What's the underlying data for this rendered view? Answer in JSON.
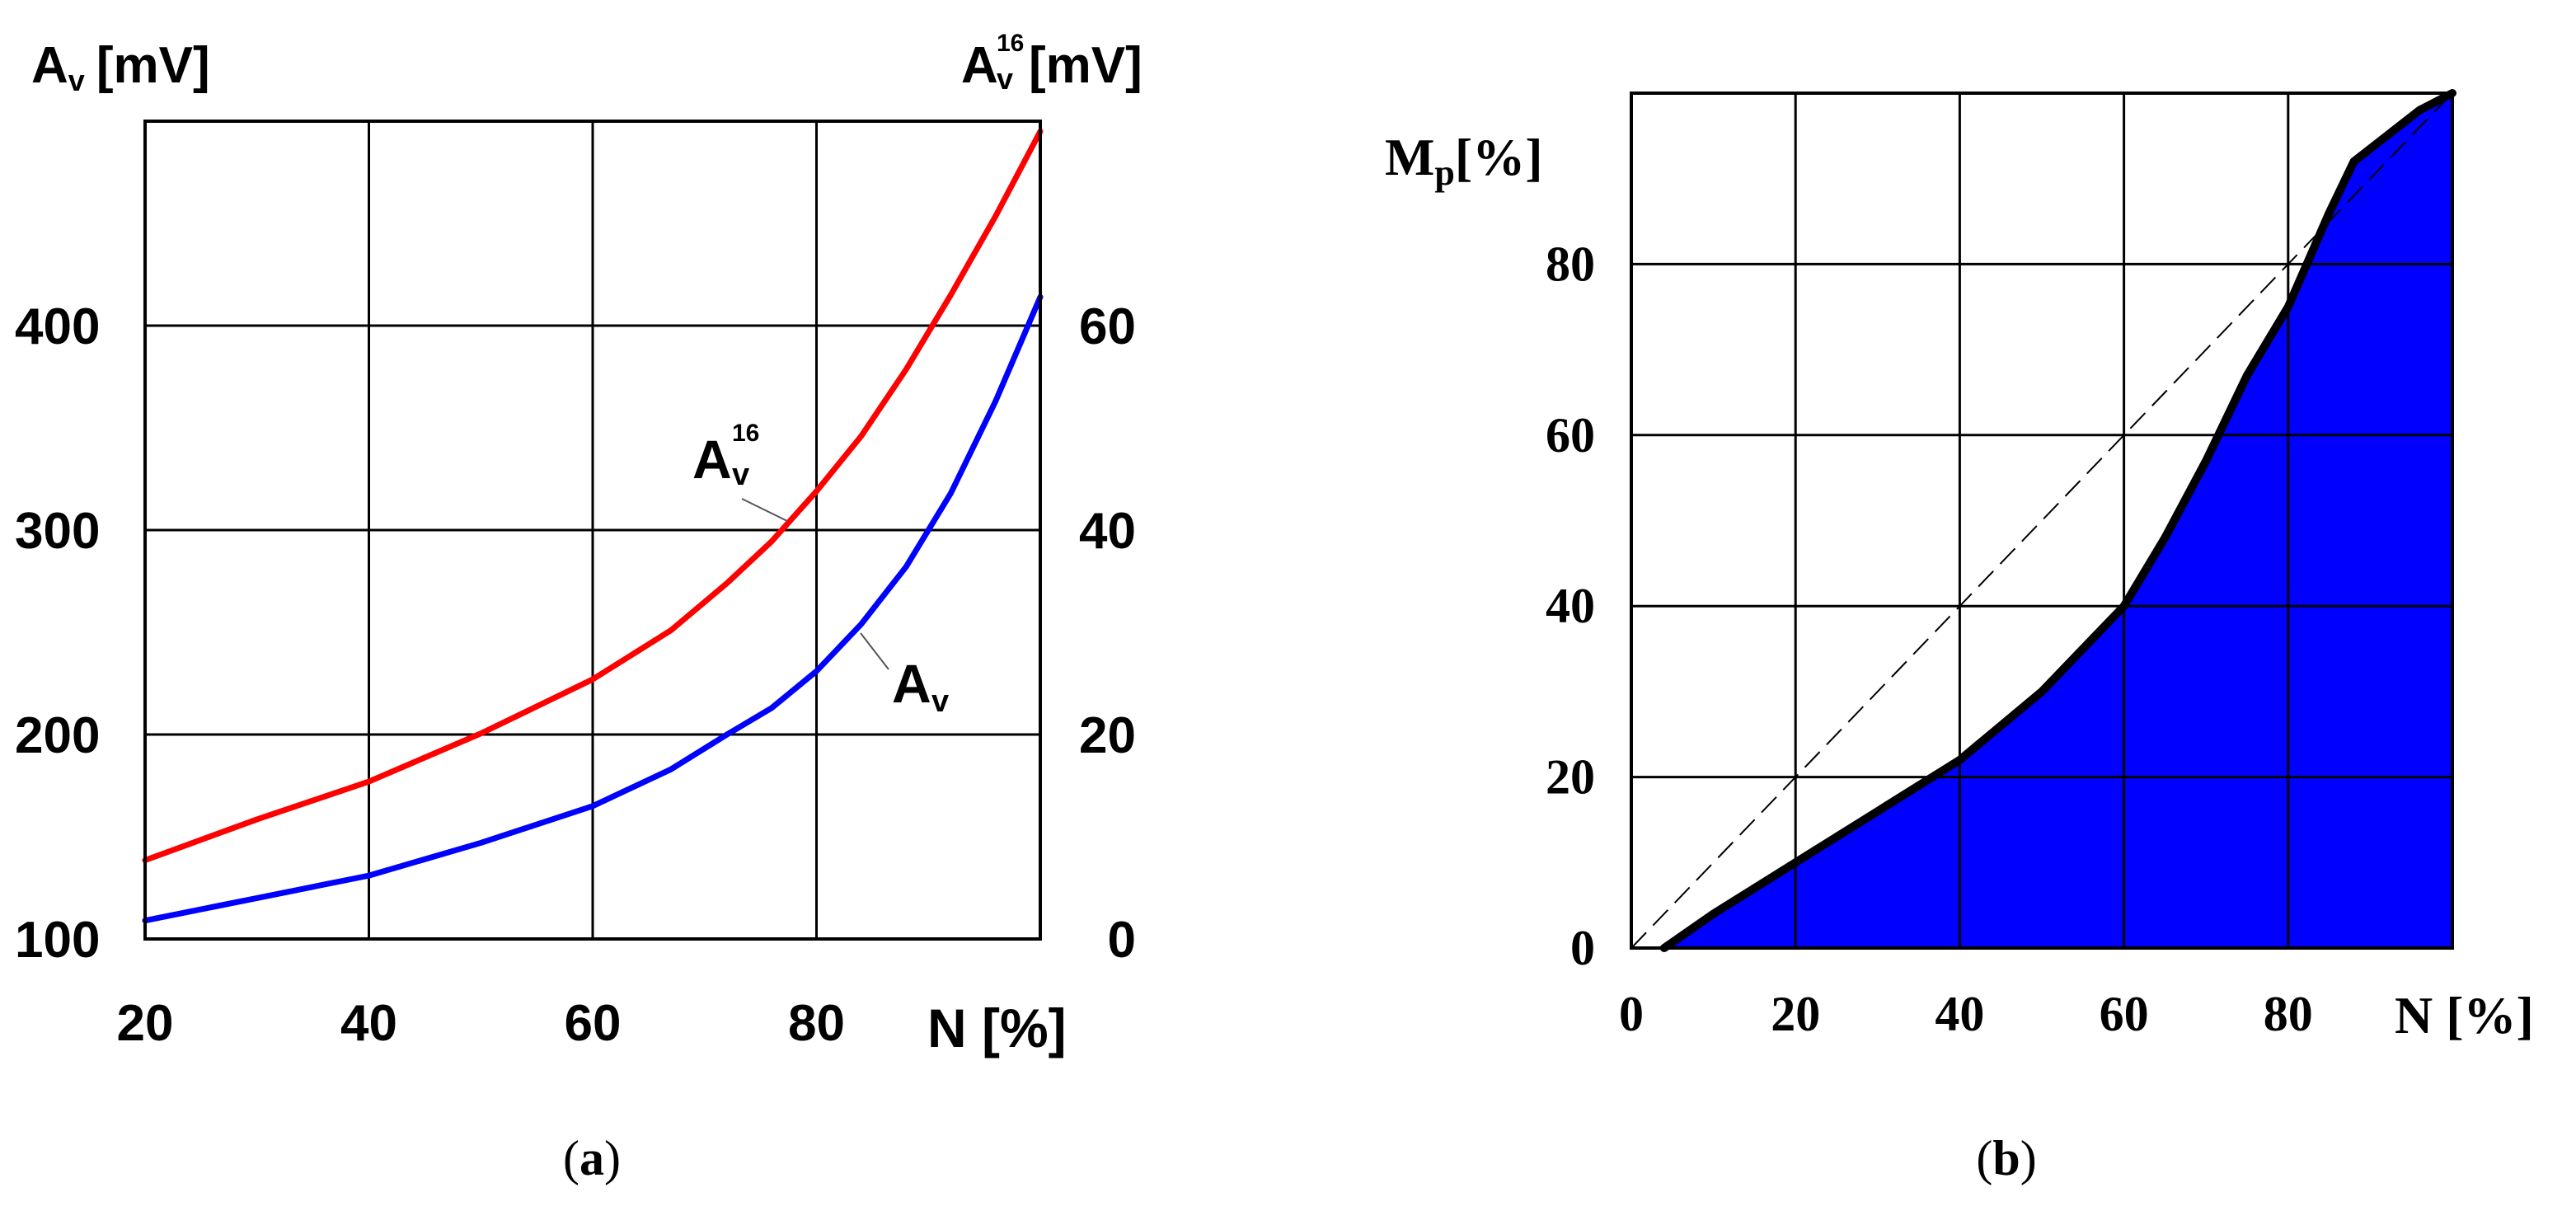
{
  "chart_data": [
    {
      "panel": "a",
      "type": "line",
      "caption": {
        "open": "(",
        "letter": "a",
        "close": ")"
      },
      "xlabel": "N [%]",
      "ylabel_left": {
        "base": "A",
        "sub": "v",
        "unit": "[mV]"
      },
      "ylabel_right": {
        "base": "A",
        "sup": "16",
        "sub": "v",
        "unit": "[mV]"
      },
      "xlim": [
        20,
        100
      ],
      "ylim_left": [
        100,
        500
      ],
      "ylim_right": [
        0,
        80
      ],
      "xticks": [
        20,
        40,
        60,
        80
      ],
      "yticks_left": [
        100,
        200,
        300,
        400
      ],
      "yticks_right": [
        0,
        20,
        40,
        60
      ],
      "grid": true,
      "series": [
        {
          "key": "A16v",
          "axis": "right",
          "color": "#ff0000",
          "label": {
            "base": "A",
            "sup": "16",
            "sub": "v"
          },
          "x": [
            20,
            30,
            40,
            50,
            60,
            67,
            72,
            76,
            80,
            84,
            88,
            92,
            96,
            100
          ],
          "y": [
            7.7,
            11.7,
            15.4,
            20.1,
            25.4,
            30.2,
            34.8,
            38.9,
            43.8,
            49.2,
            55.7,
            63.0,
            70.7,
            79.0
          ]
        },
        {
          "key": "Av",
          "axis": "left",
          "color": "#0000ff",
          "label": {
            "base": "A",
            "sub": "v"
          },
          "x": [
            20,
            30,
            40,
            50,
            60,
            67,
            72,
            76,
            80,
            84,
            88,
            92,
            96,
            100
          ],
          "y": [
            109,
            120,
            131,
            147,
            165,
            183,
            200,
            213,
            231,
            254,
            282,
            318,
            363,
            414
          ]
        }
      ]
    },
    {
      "panel": "b",
      "type": "area",
      "caption": {
        "open": "(",
        "letter": "b",
        "close": ")"
      },
      "xlabel": "N [%]",
      "ylabel": {
        "base": "M",
        "sub": "p",
        "unit": "[%]"
      },
      "xlim": [
        0,
        100
      ],
      "ylim": [
        0,
        100
      ],
      "xticks": [
        0,
        20,
        40,
        60,
        80
      ],
      "yticks": [
        0,
        20,
        40,
        60,
        80
      ],
      "grid": true,
      "fill_color": "#0000ff",
      "line_color": "#000000",
      "series": [
        {
          "name": "Mp",
          "x": [
            4,
            10,
            20,
            30,
            40,
            50,
            60,
            65,
            70,
            75,
            80,
            85,
            88,
            92,
            96,
            100
          ],
          "y": [
            0,
            4,
            10,
            16,
            22,
            30,
            40,
            48,
            57,
            67,
            75,
            86,
            92,
            95,
            98,
            100
          ]
        }
      ],
      "diagonal": {
        "x": [
          0,
          100
        ],
        "y": [
          0,
          100
        ],
        "style": "dashed"
      }
    }
  ]
}
